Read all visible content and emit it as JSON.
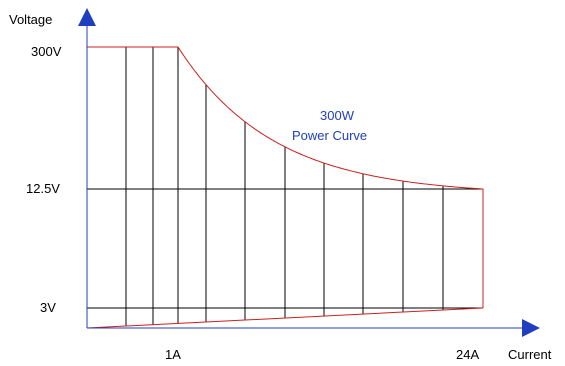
{
  "axes": {
    "y_label": "Voltage",
    "x_label": "Current",
    "y_ticks": [
      {
        "value": 300,
        "label": "300V"
      },
      {
        "value": 12.5,
        "label": "12.5V"
      },
      {
        "value": 3,
        "label": "3V"
      }
    ],
    "x_ticks": [
      {
        "value": 1,
        "label": "1A"
      },
      {
        "value": 24,
        "label": "24A"
      }
    ]
  },
  "annotation": {
    "line1": "300W",
    "line2": "Power Curve"
  },
  "colors": {
    "axis": "#1f3fbf",
    "curve": "#cc1f1f",
    "grid": "#000000",
    "annotation": "#1f3fbf"
  }
}
